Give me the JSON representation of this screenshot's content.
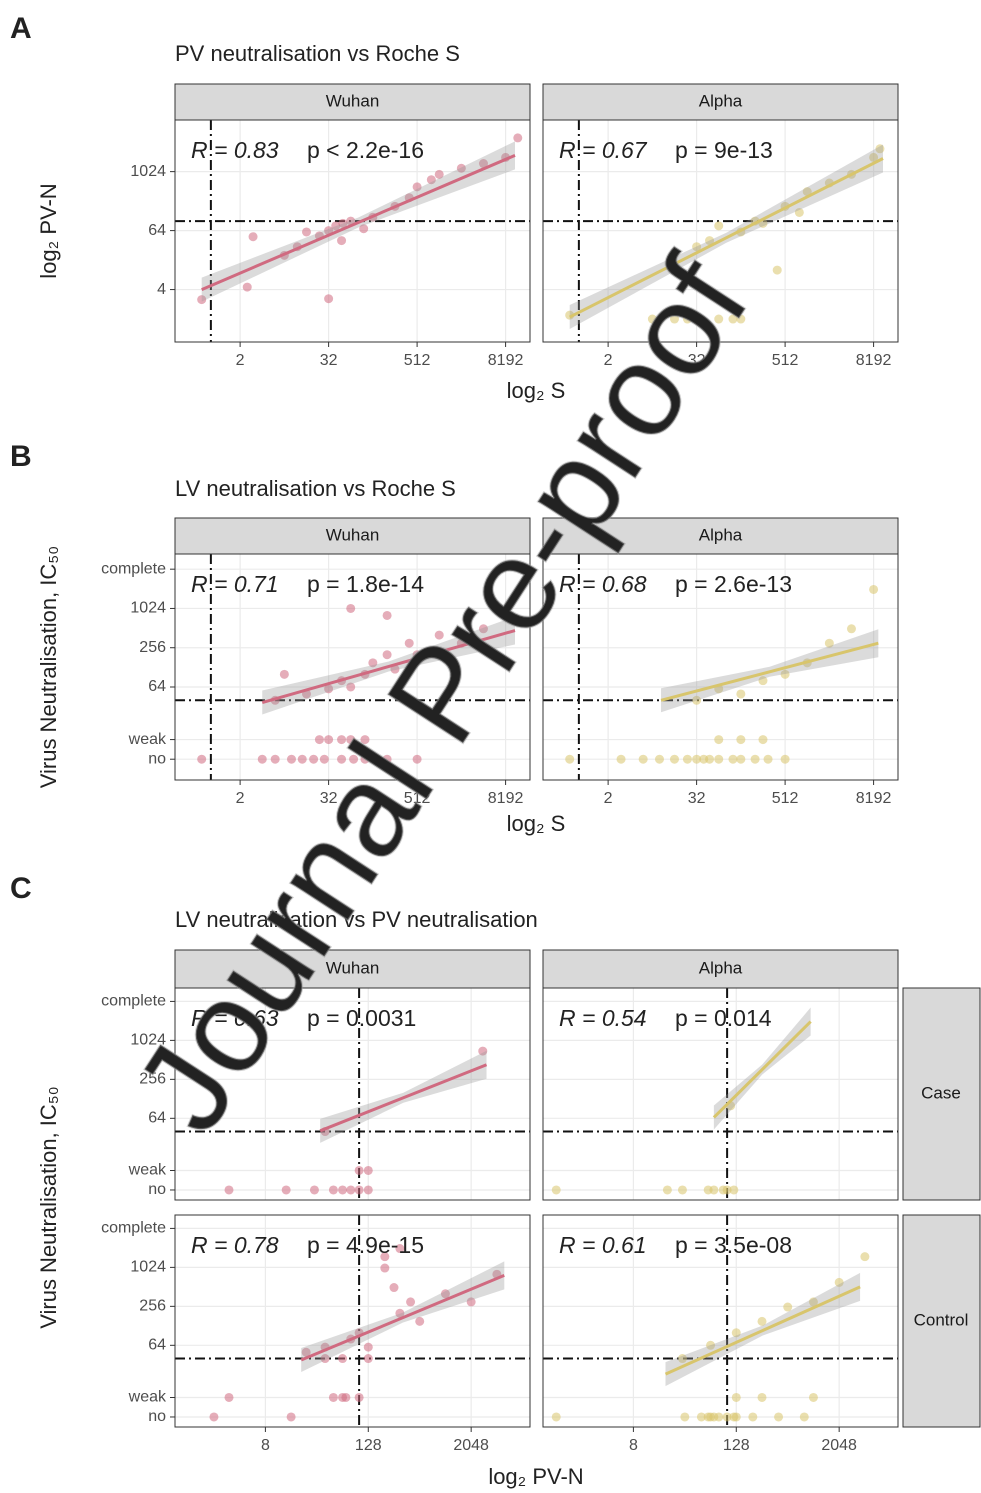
{
  "chart_data": [
    {
      "type": "scatter",
      "panel": "A",
      "title": "PV neutralisation vs Roche S",
      "x_label": "log₂ S",
      "y_label": "log₂ PV-N",
      "log_base": 2,
      "grid": true,
      "columns": [
        "Wuhan",
        "Alpha"
      ],
      "xlim": [
        0.26,
        17600
      ],
      "ylim": [
        0.34,
        11600
      ],
      "xticks": [
        2,
        32,
        512,
        8192
      ],
      "yticks": [
        4,
        64,
        1024
      ],
      "vline": 0.8,
      "hline": 100,
      "facets": [
        {
          "color": "#d06a80",
          "R": "R = 0.83",
          "p": "p < 2.2e-16",
          "x": [
            0.6,
            2.5,
            3,
            8,
            12,
            16,
            24,
            32,
            40,
            48,
            64,
            96,
            128,
            256,
            400,
            512,
            800,
            1024,
            2048,
            4096,
            8192,
            12000,
            32,
            50
          ],
          "y": [
            2.5,
            4.5,
            48,
            20,
            30,
            60,
            50,
            64,
            80,
            40,
            100,
            70,
            120,
            200,
            300,
            500,
            700,
            900,
            1200,
            1500,
            2000,
            5000,
            2.6,
            90
          ],
          "fit_x": [
            0.6,
            11000
          ],
          "fit_y": [
            4,
            2200
          ]
        },
        {
          "color": "#d8c56c",
          "R": "R = 0.67",
          "p": "p = 9e-13",
          "x": [
            0.6,
            8,
            16,
            24,
            32,
            64,
            100,
            128,
            32,
            48,
            64,
            128,
            200,
            256,
            400,
            512,
            800,
            1024,
            2048,
            4096,
            8192,
            10000
          ],
          "y": [
            1.2,
            1,
            1,
            1,
            1,
            1,
            1,
            1,
            30,
            40,
            80,
            60,
            100,
            90,
            10,
            200,
            150,
            400,
            600,
            900,
            2000,
            3000
          ],
          "fit_x": [
            0.6,
            11000
          ],
          "fit_y": [
            1.1,
            1900
          ]
        }
      ]
    },
    {
      "type": "scatter",
      "panel": "B",
      "title": "LV neutralisation vs Roche S",
      "x_label": "log₂ S",
      "y_label": "Virus Neutralisation, IC₅₀",
      "log_base": 2,
      "grid": true,
      "columns": [
        "Wuhan",
        "Alpha"
      ],
      "xlim": [
        0.26,
        17600
      ],
      "ylim": [
        2.4,
        7000
      ],
      "xticks": [
        2,
        32,
        512,
        8192
      ],
      "yticks": [
        {
          "value": 5,
          "label": "no"
        },
        {
          "value": 10,
          "label": "weak"
        },
        64,
        256,
        1024,
        {
          "value": 4096,
          "label": "complete"
        }
      ],
      "vline": 0.8,
      "hline": 40,
      "facets": [
        {
          "color": "#d06a80",
          "R": "R = 0.71",
          "p": "p = 1.8e-14",
          "x": [
            0.6,
            4,
            6,
            10,
            14,
            20,
            28,
            48,
            70,
            100,
            200,
            512,
            24,
            32,
            48,
            64,
            100,
            6,
            8,
            16,
            32,
            48,
            64,
            100,
            128,
            200,
            256,
            400,
            512,
            1024,
            2048,
            4096,
            64,
            200
          ],
          "y": [
            5,
            5,
            5,
            5,
            5,
            5,
            5,
            5,
            5,
            5,
            5,
            5,
            10,
            10,
            10,
            10,
            10,
            40,
            100,
            50,
            60,
            80,
            64,
            100,
            150,
            200,
            120,
            300,
            200,
            400,
            300,
            500,
            1024,
            800
          ],
          "fit_x": [
            4,
            11000
          ],
          "fit_y": [
            37,
            470
          ]
        },
        {
          "color": "#d8c56c",
          "R": "R = 0.68",
          "p": "p = 2.6e-13",
          "x": [
            0.6,
            3,
            6,
            10,
            16,
            24,
            32,
            40,
            48,
            64,
            100,
            128,
            200,
            300,
            512,
            64,
            128,
            256,
            32,
            64,
            128,
            256,
            512,
            1024,
            2048,
            4096,
            8192
          ],
          "y": [
            5,
            5,
            5,
            5,
            5,
            5,
            5,
            5,
            5,
            5,
            5,
            5,
            5,
            5,
            5,
            10,
            10,
            10,
            40,
            60,
            50,
            80,
            100,
            150,
            300,
            500,
            2000
          ],
          "fit_x": [
            10.5,
            9500
          ],
          "fit_y": [
            40,
            300
          ]
        }
      ]
    },
    {
      "type": "scatter",
      "panel": "C",
      "title": "LV neutralisation vs PV neutralisation",
      "x_label": "log₂ PV-N",
      "y_label": "Virus Neutralisation, IC₅₀",
      "log_base": 2,
      "grid": true,
      "columns": [
        "Wuhan",
        "Alpha"
      ],
      "rows": [
        "Case",
        "Control"
      ],
      "xlim": [
        0.7,
        10000
      ],
      "ylim": [
        3.5,
        6600
      ],
      "xticks": [
        8,
        128,
        2048
      ],
      "yticks": [
        {
          "value": 5,
          "label": "no"
        },
        {
          "value": 10,
          "label": "weak"
        },
        64,
        256,
        1024,
        {
          "value": 4096,
          "label": "complete"
        }
      ],
      "vline": 100,
      "hline": 40,
      "facets": [
        {
          "color": "#d06a80",
          "R": "R = 0.63",
          "p": "p = 0.0031",
          "x": [
            3,
            14,
            30,
            50,
            64,
            80,
            100,
            128,
            100,
            128,
            2800,
            40
          ],
          "y": [
            5,
            5,
            5,
            5,
            5,
            5,
            5,
            5,
            10,
            10,
            700,
            40
          ],
          "fit_x": [
            35,
            3100
          ],
          "fit_y": [
            41,
            430
          ]
        },
        {
          "color": "#d8c56c",
          "R": "R = 0.54",
          "p": "p = 0.014",
          "x": [
            1,
            20,
            30,
            60,
            70,
            90,
            100,
            120,
            110
          ],
          "y": [
            5,
            5,
            5,
            5,
            5,
            5,
            5,
            5,
            100
          ],
          "fit_x": [
            70,
            950
          ],
          "fit_y": [
            66,
            2000
          ]
        },
        {
          "color": "#d06a80",
          "R": "R = 0.78",
          "p": "p = 4.9e-15",
          "x": [
            2,
            3,
            16,
            50,
            64,
            70,
            100,
            40,
            128,
            24,
            40,
            64,
            80,
            100,
            128,
            200,
            256,
            300,
            400,
            512,
            1024,
            2048,
            4096,
            200,
            300
          ],
          "y": [
            5,
            10,
            5,
            10,
            10,
            10,
            10,
            40,
            40,
            50,
            60,
            40,
            80,
            100,
            60,
            1000,
            500,
            200,
            300,
            150,
            400,
            300,
            800,
            1500,
            2000
          ],
          "fit_x": [
            21,
            5000
          ],
          "fit_y": [
            38,
            770
          ]
        },
        {
          "color": "#d8c56c",
          "R": "R = 0.61",
          "p": "p = 3.5e-08",
          "x": [
            1,
            32,
            50,
            60,
            64,
            70,
            80,
            100,
            120,
            128,
            200,
            400,
            800,
            128,
            256,
            1024,
            30,
            64,
            128,
            256,
            512,
            1024,
            2048,
            4096
          ],
          "y": [
            5,
            5,
            5,
            5,
            5,
            5,
            5,
            5,
            5,
            5,
            5,
            5,
            5,
            10,
            10,
            10,
            40,
            64,
            100,
            150,
            250,
            300,
            600,
            1500
          ],
          "fit_x": [
            19,
            3600
          ],
          "fit_y": [
            23,
            512
          ]
        }
      ]
    }
  ],
  "watermark": "Journal Pre-proof"
}
